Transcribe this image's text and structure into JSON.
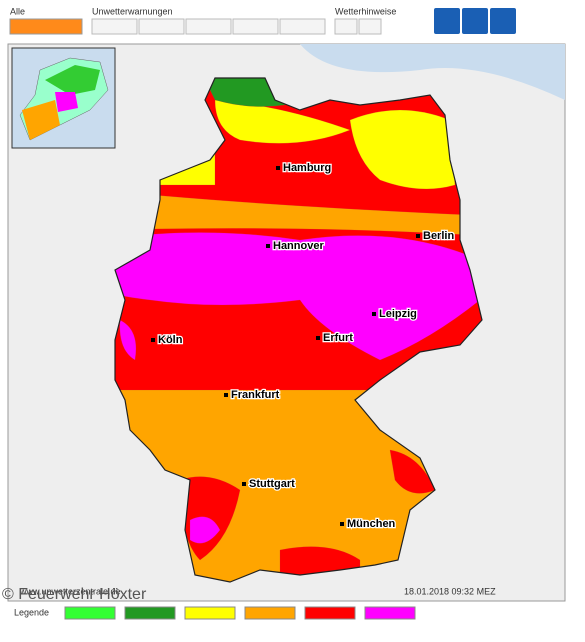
{
  "filters": {
    "all": "Alle",
    "severe_warnings": "Unwetterwarnungen",
    "weather_notes": "Wetterhinweise"
  },
  "cities": [
    {
      "name": "Hamburg"
    },
    {
      "name": "Hannover"
    },
    {
      "name": "Berlin"
    },
    {
      "name": "Leipzig"
    },
    {
      "name": "Köln"
    },
    {
      "name": "Erfurt"
    },
    {
      "name": "Frankfurt"
    },
    {
      "name": "Stuttgart"
    },
    {
      "name": "München"
    }
  ],
  "watermark": "www.unwetterzentrale.de",
  "timestamp": "18.01.2018 09:32 MEZ",
  "copyright": "© Feuerwehr Höxter",
  "legend": {
    "title": "Legende",
    "colors": [
      "#33ff33",
      "#229922",
      "#ffff00",
      "#ffa500",
      "#ff0000",
      "#ff00ff"
    ]
  }
}
